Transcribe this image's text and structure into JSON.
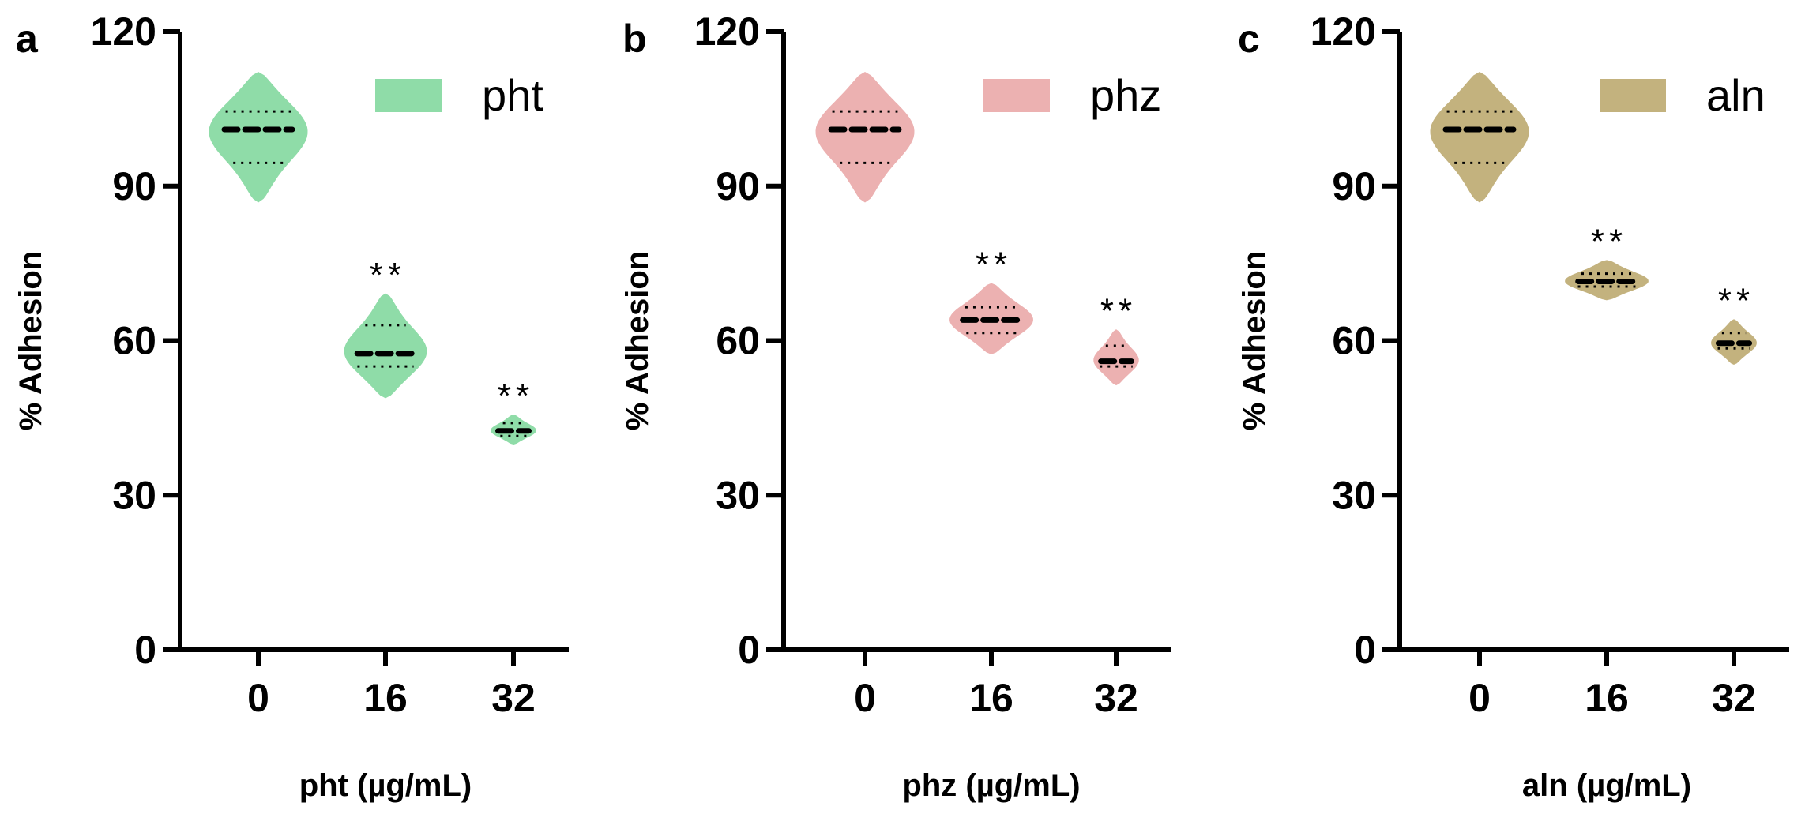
{
  "chart_data": [
    {
      "type": "violin",
      "panel": "a",
      "legend": "pht",
      "color": "#8fdca8",
      "xlabel": "pht (µg/mL)",
      "ylabel": "% Adhesion",
      "ylim": [
        0,
        120
      ],
      "yticks": [
        "0",
        "30",
        "60",
        "90",
        "120"
      ],
      "categories": [
        "0",
        "16",
        "32"
      ],
      "groups": [
        {
          "min": 87,
          "max": 112,
          "median": 101,
          "q1": 94.5,
          "q3": 104.5,
          "significance": ""
        },
        {
          "min": 49,
          "max": 69,
          "median": 57.5,
          "q1": 55,
          "q3": 63,
          "significance": "**"
        },
        {
          "min": 40,
          "max": 45.5,
          "median": 42.5,
          "q1": 41.5,
          "q3": 44,
          "significance": "**"
        }
      ]
    },
    {
      "type": "violin",
      "panel": "b",
      "legend": "phz",
      "color": "#ecb1b1",
      "xlabel": "phz (µg/mL)",
      "ylabel": "% Adhesion",
      "ylim": [
        0,
        120
      ],
      "yticks": [
        "0",
        "30",
        "60",
        "90",
        "120"
      ],
      "categories": [
        "0",
        "16",
        "32"
      ],
      "groups": [
        {
          "min": 87,
          "max": 112,
          "median": 101,
          "q1": 94.5,
          "q3": 104.5,
          "significance": ""
        },
        {
          "min": 57.5,
          "max": 71,
          "median": 64,
          "q1": 61.5,
          "q3": 66.5,
          "significance": "**"
        },
        {
          "min": 51.5,
          "max": 62,
          "median": 56,
          "q1": 55,
          "q3": 59,
          "significance": "**"
        }
      ]
    },
    {
      "type": "violin",
      "panel": "c",
      "legend": "aln",
      "color": "#c3b27e",
      "xlabel": "aln (µg/mL)",
      "ylabel": "% Adhesion",
      "ylim": [
        0,
        120
      ],
      "yticks": [
        "0",
        "30",
        "60",
        "90",
        "120"
      ],
      "categories": [
        "0",
        "16",
        "32"
      ],
      "groups": [
        {
          "min": 87,
          "max": 112,
          "median": 101,
          "q1": 94.5,
          "q3": 104.5,
          "significance": ""
        },
        {
          "min": 68,
          "max": 75.5,
          "median": 71.5,
          "q1": 70.5,
          "q3": 73,
          "significance": "**"
        },
        {
          "min": 55.5,
          "max": 64,
          "median": 59.5,
          "q1": 58.5,
          "q3": 61.5,
          "significance": "**"
        }
      ]
    }
  ]
}
